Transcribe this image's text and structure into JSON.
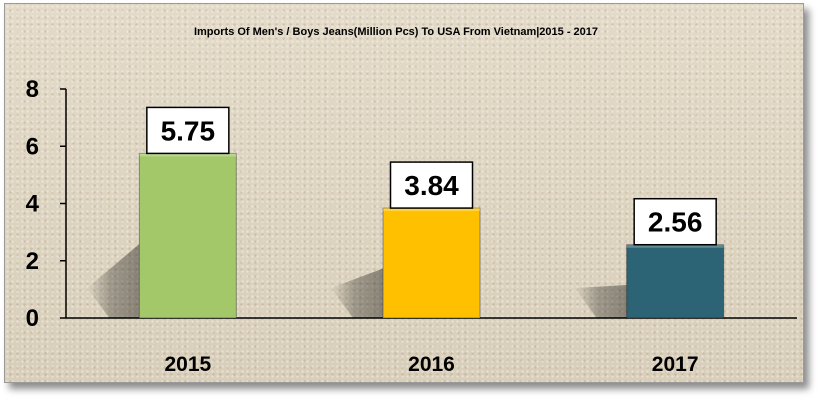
{
  "chart_data": {
    "type": "bar",
    "title": "Imports Of Men's / Boys Jeans(Million Pcs) To USA From Vietnam|2015 - 2017",
    "xlabel": "",
    "ylabel": "",
    "categories": [
      "2015",
      "2016",
      "2017"
    ],
    "values": [
      5.75,
      3.84,
      2.56
    ],
    "data_labels": [
      "5.75",
      "3.84",
      "2.56"
    ],
    "yticks": [
      0,
      2,
      4,
      6,
      8
    ],
    "ylim": [
      0,
      8
    ],
    "grid": false,
    "legend": "none",
    "colors": [
      "#a3c86a",
      "#ffc000",
      "#2c6475"
    ],
    "background": "#ddd3c0"
  }
}
